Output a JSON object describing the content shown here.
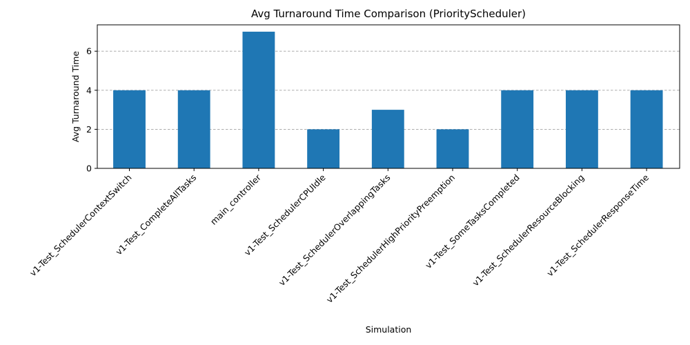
{
  "chart_data": {
    "type": "bar",
    "title": "Avg Turnaround Time Comparison (PriorityScheduler)",
    "xlabel": "Simulation",
    "ylabel": "Avg Turnaround Time",
    "categories": [
      "v1-Test_SchedulerContextSwitch",
      "v1-Test_CompleteAllTasks",
      "main_controller",
      "v1-Test_SchedulerCPUIdle",
      "v1-Test_SchedulerOverlappingTasks",
      "v1-Test_SchedulerHighPriorityPreemption",
      "v1-Test_SomeTasksCompleted",
      "v1-Test_SchedulerResourceBlocking",
      "v1-Test_SchedulerResponseTime"
    ],
    "values": [
      4,
      4,
      7,
      2,
      3,
      2,
      4,
      4,
      4
    ],
    "ylim": [
      0,
      7.35
    ],
    "yticks": [
      0,
      2,
      4,
      6
    ],
    "grid": "y-axis dashed",
    "legend": "none",
    "bar_color": "#1f77b4"
  }
}
